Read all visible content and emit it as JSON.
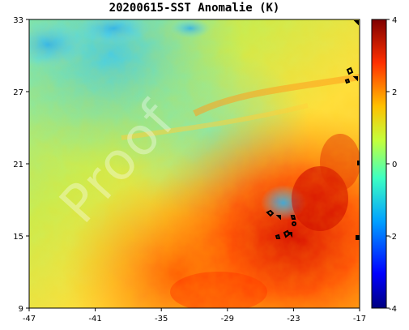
{
  "title": "20200615-SST Anomalie (K)",
  "watermark": "Proof",
  "map": {
    "lon_range": [
      -47,
      -17
    ],
    "lat_range": [
      9,
      33
    ],
    "x_ticks": [
      "-47",
      "-41",
      "-35",
      "-29",
      "-23",
      "-17"
    ],
    "y_ticks": [
      "33",
      "27",
      "21",
      "15",
      "9"
    ]
  },
  "colorbar": {
    "range": [
      -4,
      4
    ],
    "ticks": [
      "4",
      "2",
      "0",
      "-2",
      "-4"
    ],
    "colormap": "jet",
    "colors": [
      "#00007f",
      "#0000ff",
      "#00a0ff",
      "#3cffc3",
      "#c3ff3c",
      "#ffc000",
      "#ff3000",
      "#7f0000"
    ]
  }
}
